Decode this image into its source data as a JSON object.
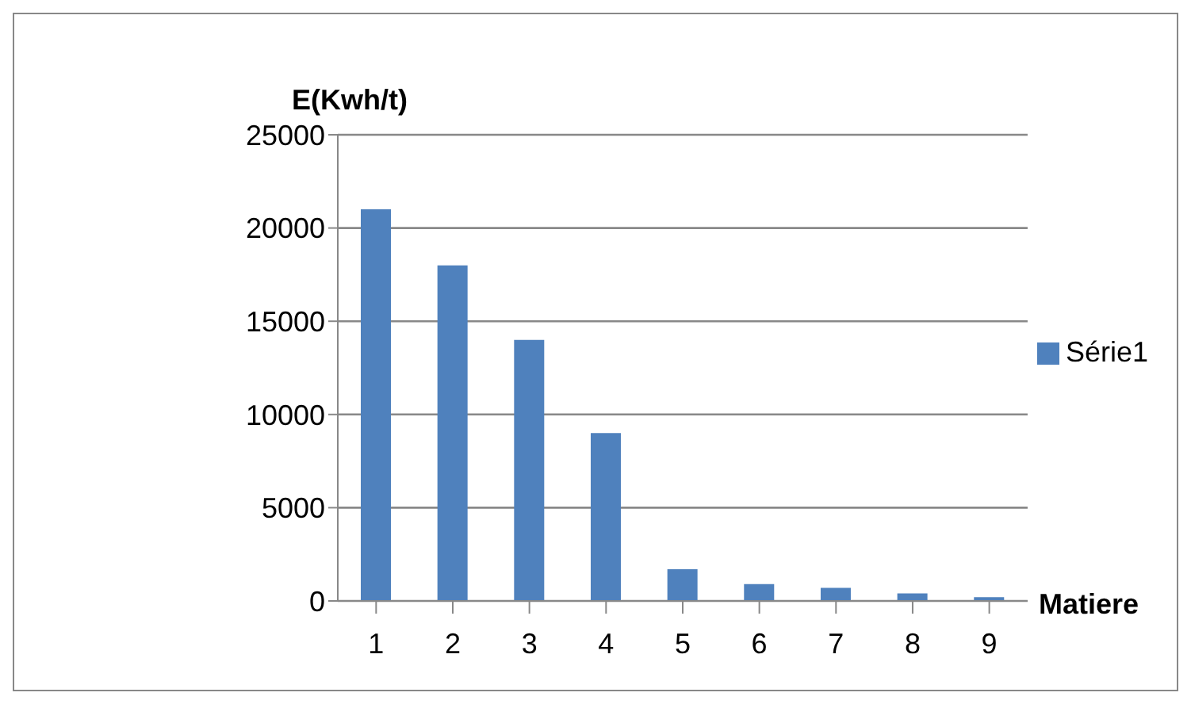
{
  "chart_data": {
    "type": "bar",
    "ylabel": "E(Kwh/t)",
    "xlabel": "Matiere",
    "categories": [
      "1",
      "2",
      "3",
      "4",
      "5",
      "6",
      "7",
      "8",
      "9"
    ],
    "series": [
      {
        "name": "Série1",
        "color": "#4f81bd",
        "values": [
          21000,
          18000,
          14000,
          9000,
          1700,
          900,
          700,
          400,
          200
        ]
      }
    ],
    "ylim": [
      0,
      25000
    ],
    "yticks": [
      0,
      5000,
      10000,
      15000,
      20000,
      25000
    ],
    "grid": "y",
    "legend": "right"
  }
}
